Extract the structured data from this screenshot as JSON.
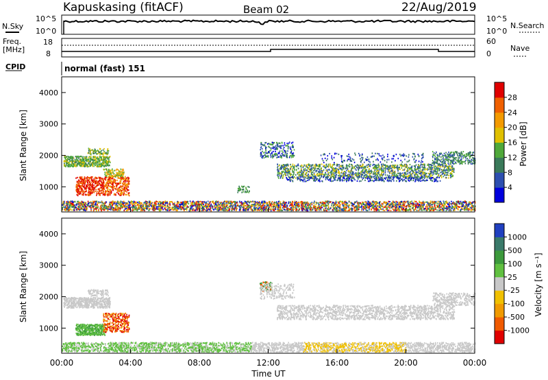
{
  "header": {
    "station": "Kapuskasing (fitACF)",
    "beam": "Beam 02",
    "date": "22/Aug/2019"
  },
  "top_panels": {
    "nsky_label": "N.Sky",
    "nsky_ticks": [
      "10^5",
      "10^0"
    ],
    "nsearch_label": "N.Search",
    "nsearch_ticks": [
      "10^5",
      "10^0"
    ],
    "freq_label_1": "Freq.",
    "freq_label_2": "[MHz]",
    "freq_ticks": [
      "18",
      "8"
    ],
    "nave_label": "Nave",
    "nave_ticks": [
      "60",
      "0"
    ],
    "cpid_label": "CPID",
    "cpid_value": "normal (fast) 151"
  },
  "chart_data": [
    {
      "type": "heatmap",
      "name": "Power",
      "ylabel": "Slant Range [km]",
      "yticks": [
        "1000",
        "2000",
        "3000",
        "4000"
      ],
      "ylim": [
        200,
        4500
      ],
      "xlim": [
        0,
        24
      ],
      "colorbar_label": "Power [dB]",
      "colorbar_ticks": [
        "4",
        "8",
        "12",
        "16",
        "20",
        "24",
        "28"
      ],
      "colors": [
        "#0000dd",
        "#2d4fb0",
        "#3a7a5a",
        "#4fa83a",
        "#e0c000",
        "#f39a00",
        "#f06000",
        "#e00000"
      ]
    },
    {
      "type": "heatmap",
      "name": "Velocity",
      "ylabel": "Slant Range [km]",
      "yticks": [
        "1000",
        "2000",
        "3000",
        "4000"
      ],
      "ylim": [
        200,
        4500
      ],
      "xlim": [
        0,
        24
      ],
      "colorbar_label": "Velocity [m s⁻¹]",
      "colorbar_ticks": [
        "1000",
        "500",
        "100",
        "25",
        "-25",
        "-100",
        "-500",
        "-1000"
      ],
      "colors": [
        "#2040c0",
        "#3a7a6a",
        "#3c9a3c",
        "#60c040",
        "#c8c8c8",
        "#f0c000",
        "#f09a00",
        "#f05a00",
        "#e00000"
      ]
    }
  ],
  "xaxis": {
    "ticks": [
      "00:00",
      "04:00",
      "08:00",
      "12:00",
      "16:00",
      "20:00",
      "00:00"
    ],
    "label": "Time UT"
  }
}
